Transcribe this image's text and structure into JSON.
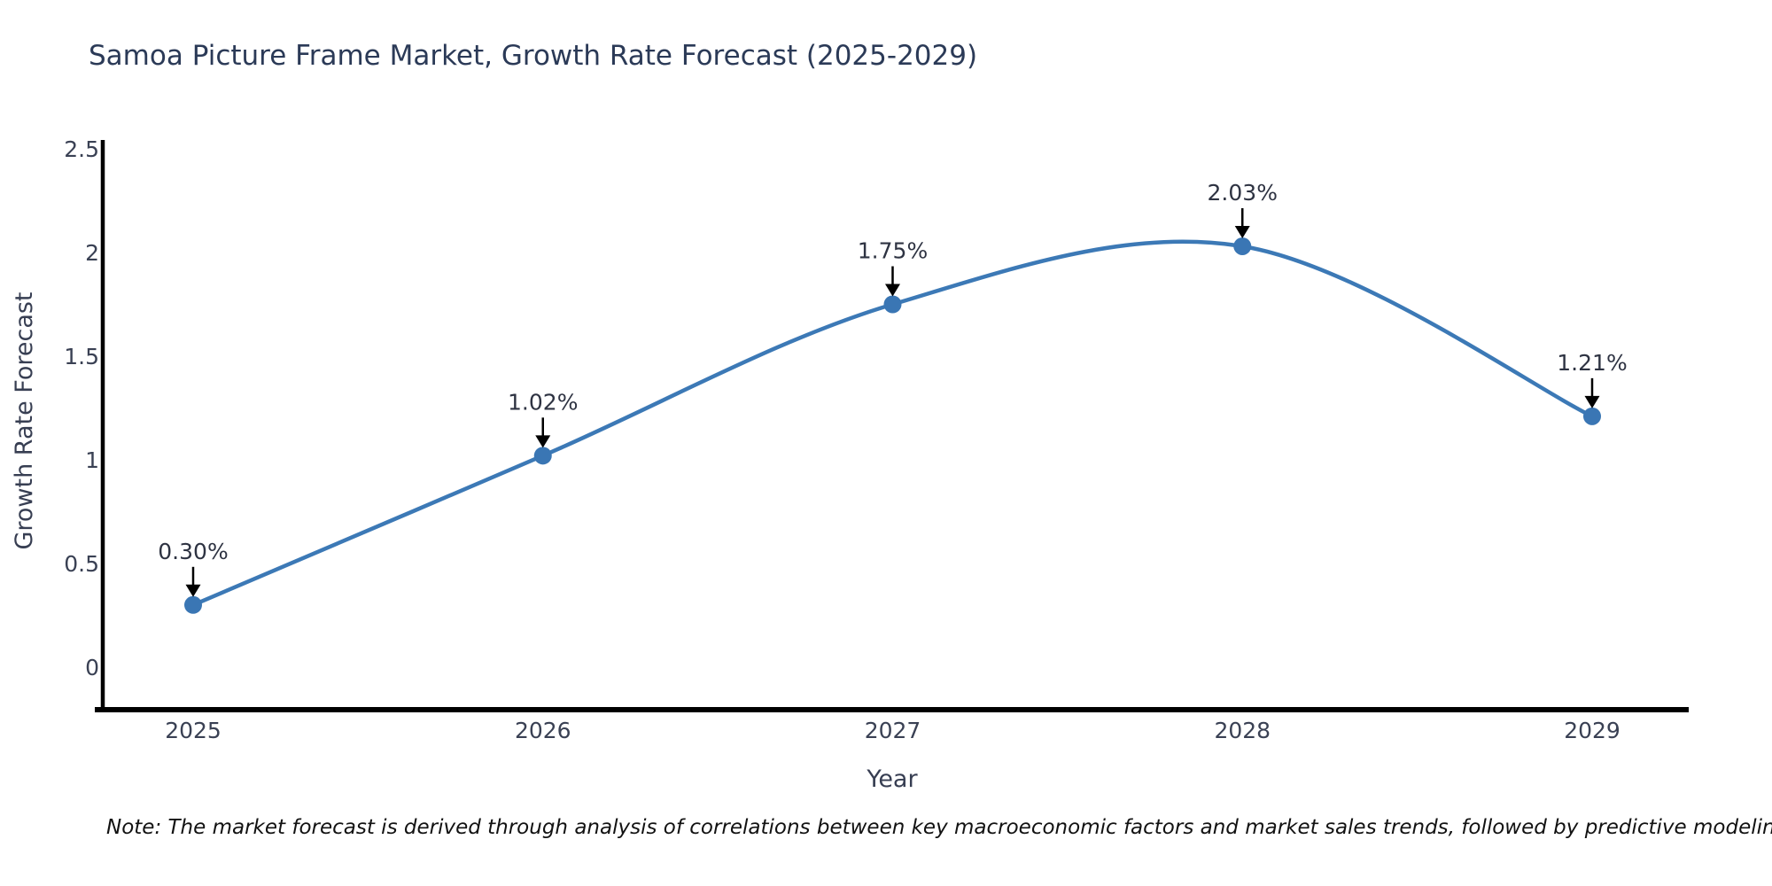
{
  "note": "Note: The market forecast is derived through analysis of correlations between key macroeconomic factors and market sales trends, followed by predictive modeling to project future sales",
  "chart_data": {
    "type": "line",
    "title": "Samoa Picture Frame Market, Growth Rate Forecast (2025-2029)",
    "xlabel": "Year",
    "ylabel": "Growth Rate Forecast",
    "categories": [
      "2025",
      "2026",
      "2027",
      "2028",
      "2029"
    ],
    "values": [
      0.3,
      1.02,
      1.75,
      2.03,
      1.21
    ],
    "point_labels": [
      "0.30%",
      "1.02%",
      "1.75%",
      "2.03%",
      "1.21%"
    ],
    "series": [
      {
        "name": "Growth Rate Forecast",
        "values": [
          0.3,
          1.02,
          1.75,
          2.03,
          1.21
        ]
      }
    ],
    "y_ticks": [
      {
        "label": "0",
        "value": 0
      },
      {
        "label": "0.5",
        "value": 0.5
      },
      {
        "label": "1",
        "value": 1
      },
      {
        "label": "1.5",
        "value": 1.5
      },
      {
        "label": "2",
        "value": 2
      },
      {
        "label": "2.5",
        "value": 2.5
      }
    ],
    "ylim": [
      -0.22,
      2.54
    ],
    "grid": false,
    "legend_position": "none",
    "line_shape": "spline",
    "markers": true,
    "line_color": "#3c79b6",
    "marker_color": "#3a76b4",
    "arrow_color": "#000000",
    "axis_color": "#000000"
  }
}
